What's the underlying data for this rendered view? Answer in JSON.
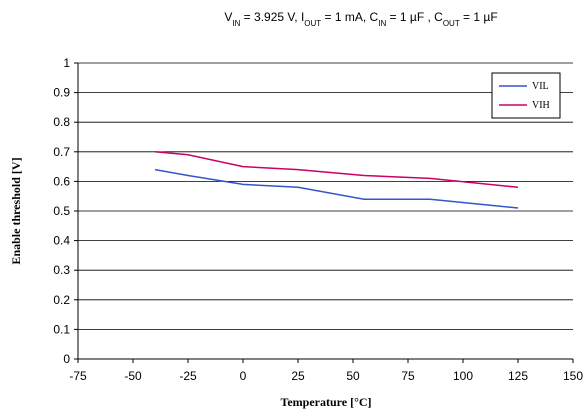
{
  "chart_data": {
    "type": "line",
    "title": {
      "parts": [
        {
          "text": "V",
          "sub": false
        },
        {
          "text": "IN",
          "sub": true
        },
        {
          "text": " = 3.925 V, I",
          "sub": false
        },
        {
          "text": "OUT",
          "sub": true
        },
        {
          "text": " = 1 mA, C",
          "sub": false
        },
        {
          "text": "IN",
          "sub": true
        },
        {
          "text": " = 1 µF , C",
          "sub": false
        },
        {
          "text": "OUT",
          "sub": true
        },
        {
          "text": " = 1 µF",
          "sub": false
        }
      ]
    },
    "xlabel": "Temperature [°C]",
    "ylabel": "Enable threshold [V]",
    "xlim": [
      -75,
      150
    ],
    "ylim": [
      0,
      1
    ],
    "x_ticks": [
      -75,
      -50,
      -25,
      0,
      25,
      50,
      75,
      100,
      125,
      150
    ],
    "y_ticks": [
      0,
      0.1,
      0.2,
      0.3,
      0.4,
      0.5,
      0.6,
      0.7,
      0.8,
      0.9,
      1
    ],
    "grid": "horizontal",
    "legend_position": "top-right",
    "series": [
      {
        "name": "VIL",
        "color": "#3355cc",
        "x": [
          -40,
          -25,
          0,
          25,
          55,
          85,
          125
        ],
        "y": [
          0.64,
          0.62,
          0.59,
          0.58,
          0.54,
          0.54,
          0.51
        ]
      },
      {
        "name": "VIH",
        "color": "#cc0066",
        "x": [
          -40,
          -25,
          0,
          25,
          55,
          85,
          125
        ],
        "y": [
          0.7,
          0.69,
          0.65,
          0.64,
          0.62,
          0.61,
          0.58
        ]
      }
    ]
  }
}
